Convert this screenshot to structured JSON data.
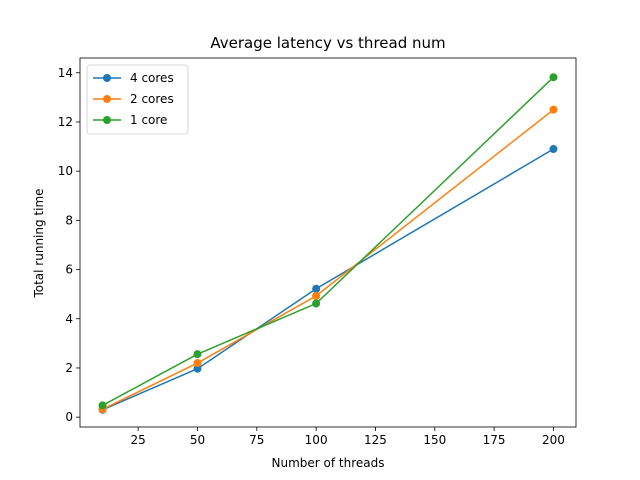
{
  "chart_data": {
    "type": "line",
    "title": "Average latency vs thread num",
    "xlabel": "Number of threads",
    "ylabel": "Total running time",
    "xlim": [
      0.5,
      209.5
    ],
    "ylim": [
      -0.4,
      14.6
    ],
    "xticks": [
      25,
      50,
      75,
      100,
      125,
      150,
      175,
      200
    ],
    "yticks": [
      0,
      2,
      4,
      6,
      8,
      10,
      12,
      14
    ],
    "grid": false,
    "legend_position": "top-left",
    "x": [
      10,
      50,
      100,
      200
    ],
    "series": [
      {
        "name": "4 cores",
        "color": "#1f77b4",
        "values": [
          0.3,
          1.97,
          5.22,
          10.9
        ]
      },
      {
        "name": "2 cores",
        "color": "#ff7f0e",
        "values": [
          0.32,
          2.2,
          4.93,
          12.5
        ]
      },
      {
        "name": "1 core",
        "color": "#2ca02c",
        "values": [
          0.48,
          2.56,
          4.62,
          13.82
        ]
      }
    ]
  }
}
